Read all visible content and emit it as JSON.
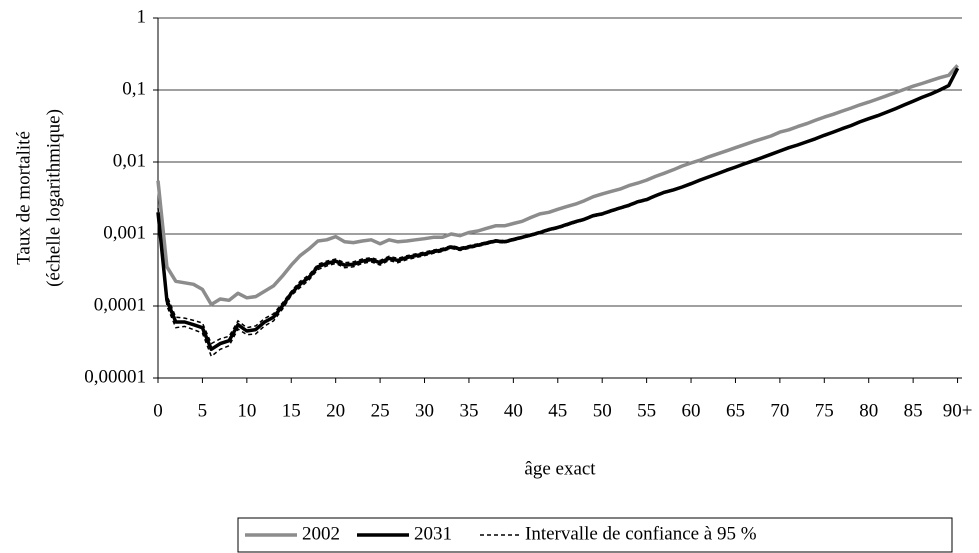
{
  "chart_data": {
    "type": "line",
    "y_label": [
      "Taux de mortalité",
      "(échelle logarithmique)"
    ],
    "x_label": "âge exact",
    "x": [
      0,
      1,
      2,
      3,
      4,
      5,
      6,
      7,
      8,
      9,
      10,
      11,
      12,
      13,
      14,
      15,
      16,
      17,
      18,
      19,
      20,
      21,
      22,
      23,
      24,
      25,
      26,
      27,
      28,
      29,
      30,
      31,
      32,
      33,
      34,
      35,
      36,
      37,
      38,
      39,
      40,
      41,
      42,
      43,
      44,
      45,
      46,
      47,
      48,
      49,
      50,
      51,
      52,
      53,
      54,
      55,
      56,
      57,
      58,
      59,
      60,
      61,
      62,
      63,
      64,
      65,
      66,
      67,
      68,
      69,
      70,
      71,
      72,
      73,
      74,
      75,
      76,
      77,
      78,
      79,
      80,
      81,
      82,
      83,
      84,
      85,
      86,
      87,
      88,
      89,
      90
    ],
    "xlim": [
      0,
      90.5
    ],
    "xticks": [
      0,
      5,
      10,
      15,
      20,
      25,
      30,
      35,
      40,
      45,
      50,
      55,
      60,
      65,
      70,
      75,
      80,
      85,
      {
        "value": 90,
        "label": "90+"
      }
    ],
    "log_y": true,
    "ylim": [
      1e-05,
      1
    ],
    "yticks": [
      {
        "value": 1e-05,
        "label": "0,00001"
      },
      {
        "value": 0.0001,
        "label": "0,0001"
      },
      {
        "value": 0.001,
        "label": "0,001"
      },
      {
        "value": 0.01,
        "label": "0,01"
      },
      {
        "value": 0.1,
        "label": "0,1"
      },
      1
    ],
    "grid": true,
    "legend": "bottom",
    "series": [
      {
        "name": "2002",
        "color": "#8c8c8c",
        "values": [
          0.0055,
          0.00035,
          0.00022,
          0.00021,
          0.0002,
          0.00017,
          0.000105,
          0.000125,
          0.00012,
          0.00015,
          0.00013,
          0.000135,
          0.00016,
          0.00019,
          0.00026,
          0.00037,
          0.0005,
          0.00062,
          0.0008,
          0.00083,
          0.00092,
          0.00078,
          0.00076,
          0.0008,
          0.00083,
          0.00073,
          0.00083,
          0.00078,
          0.0008,
          0.00083,
          0.00086,
          0.0009,
          0.0009,
          0.001,
          0.00095,
          0.00105,
          0.0011,
          0.0012,
          0.0013,
          0.0013,
          0.0014,
          0.0015,
          0.0017,
          0.0019,
          0.002,
          0.0022,
          0.0024,
          0.0026,
          0.0029,
          0.0033,
          0.0036,
          0.0039,
          0.0042,
          0.0047,
          0.0051,
          0.0056,
          0.0063,
          0.007,
          0.0078,
          0.0088,
          0.0097,
          0.0106,
          0.0118,
          0.013,
          0.0143,
          0.0158,
          0.0174,
          0.0192,
          0.021,
          0.023,
          0.026,
          0.028,
          0.031,
          0.034,
          0.038,
          0.042,
          0.046,
          0.051,
          0.056,
          0.062,
          0.068,
          0.075,
          0.083,
          0.092,
          0.102,
          0.113,
          0.123,
          0.135,
          0.148,
          0.16,
          0.22
        ]
      },
      {
        "name": "2031",
        "color": "#000000",
        "values": [
          0.002,
          0.00012,
          6e-05,
          6e-05,
          5.5e-05,
          5e-05,
          2.5e-05,
          3e-05,
          3.3e-05,
          5.5e-05,
          4.5e-05,
          4.7e-05,
          6e-05,
          7e-05,
          0.0001,
          0.00015,
          0.0002,
          0.00025,
          0.00035,
          0.00039,
          0.00042,
          0.00037,
          0.00038,
          0.00042,
          0.00044,
          0.0004,
          0.00046,
          0.00043,
          0.00047,
          0.0005,
          0.00053,
          0.00057,
          0.0006,
          0.00066,
          0.00062,
          0.00066,
          0.0007,
          0.00075,
          0.0008,
          0.00078,
          0.00084,
          0.0009,
          0.00097,
          0.00105,
          0.00115,
          0.00123,
          0.00135,
          0.00148,
          0.0016,
          0.0018,
          0.0019,
          0.0021,
          0.0023,
          0.0025,
          0.0028,
          0.003,
          0.0034,
          0.0038,
          0.0041,
          0.0045,
          0.005,
          0.0056,
          0.0062,
          0.0069,
          0.0077,
          0.0085,
          0.0094,
          0.0104,
          0.0115,
          0.0128,
          0.0142,
          0.0158,
          0.0172,
          0.019,
          0.021,
          0.0235,
          0.026,
          0.029,
          0.032,
          0.036,
          0.04,
          0.044,
          0.049,
          0.055,
          0.062,
          0.07,
          0.079,
          0.088,
          0.1,
          0.115,
          0.2
        ]
      },
      {
        "name": "Intervalle de confiance à 95 %",
        "color": "#000000",
        "dashed": true,
        "upper": [
          0.0023,
          0.00014,
          7e-05,
          6.8e-05,
          6.3e-05,
          5.8e-05,
          3e-05,
          3.5e-05,
          3.8e-05,
          6.2e-05,
          5e-05,
          5.3e-05,
          6.7e-05,
          7.8e-05,
          0.00011,
          0.00016,
          0.00022,
          0.00027,
          0.00038,
          0.00042,
          0.00045,
          0.0004,
          0.00041,
          0.00045,
          0.00047,
          0.00043,
          0.00049,
          0.00046,
          0.0005,
          0.00053,
          0.00056,
          0.0006,
          0.00063,
          0.00069,
          0.00065,
          0.00069,
          0.00073,
          0.00078,
          0.00083,
          0.00081,
          0.00087,
          0.00093,
          0.001,
          0.00109,
          0.00119,
          0.00127,
          0.0014,
          0.00153,
          0.00165,
          0.00186,
          0.00196,
          0.00217,
          0.00237,
          0.00258,
          0.00289,
          0.0031,
          0.0035,
          0.0039,
          0.0042,
          0.0046,
          0.0051,
          0.0057,
          0.0063,
          0.007,
          0.0078,
          0.0086,
          0.0095,
          0.0105,
          0.0116,
          0.0129,
          0.0143,
          0.0159,
          0.0173,
          0.0191,
          0.0211,
          0.0236,
          0.0261,
          0.0291,
          0.0321,
          0.0361,
          0.0401,
          0.0441,
          0.0491,
          0.0551,
          0.0621,
          0.0701,
          0.0791,
          0.0881,
          0.1001,
          0.1151,
          0.2001
        ],
        "lower": [
          0.0017,
          0.0001,
          5e-05,
          5.2e-05,
          4.7e-05,
          4.2e-05,
          2e-05,
          2.5e-05,
          2.8e-05,
          4.8e-05,
          4e-05,
          4.1e-05,
          5.3e-05,
          6.2e-05,
          9e-05,
          0.00014,
          0.00018,
          0.00023,
          0.00032,
          0.00036,
          0.00039,
          0.00034,
          0.00035,
          0.00039,
          0.00041,
          0.00037,
          0.00043,
          0.0004,
          0.00044,
          0.00047,
          0.0005,
          0.00054,
          0.00057,
          0.00063,
          0.00059,
          0.00063,
          0.00067,
          0.00072,
          0.00077,
          0.00075,
          0.00081,
          0.00087,
          0.00094,
          0.00101,
          0.00111,
          0.00119,
          0.0013,
          0.00143,
          0.00155,
          0.00174,
          0.00184,
          0.00203,
          0.00223,
          0.00242,
          0.00271,
          0.0029,
          0.0033,
          0.0037,
          0.004,
          0.0044,
          0.0049,
          0.0055,
          0.0061,
          0.0068,
          0.0076,
          0.0084,
          0.0093,
          0.0103,
          0.0114,
          0.0127,
          0.0141,
          0.0157,
          0.0171,
          0.0189,
          0.0209,
          0.0234,
          0.0259,
          0.0289,
          0.0319,
          0.0359,
          0.0399,
          0.0439,
          0.0489,
          0.0549,
          0.0619,
          0.0699,
          0.0789,
          0.0879,
          0.0999,
          0.1149,
          0.1999
        ]
      }
    ]
  }
}
